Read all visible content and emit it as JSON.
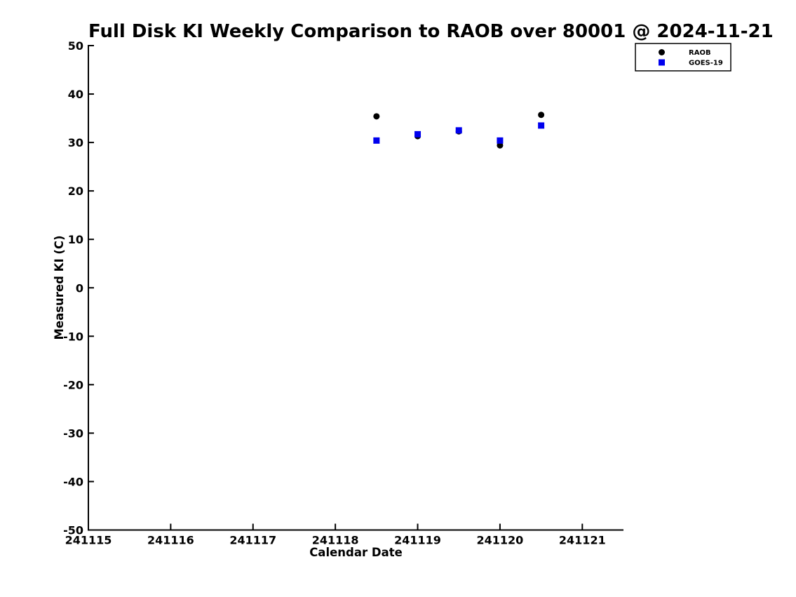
{
  "figure": {
    "background_color": "#ffffff",
    "axis_color": "#000000"
  },
  "chart_data": {
    "type": "scatter",
    "title": "Full Disk KI Weekly Comparison to RAOB over 80001 @ 2024-11-21",
    "xlabel": "Calendar Date",
    "ylabel": "Measured KI (C)",
    "xlim": [
      241115,
      241121.5
    ],
    "ylim": [
      -50,
      50
    ],
    "xtick_values": [
      241115,
      241116,
      241117,
      241118,
      241119,
      241120,
      241121
    ],
    "xtick_labels": [
      "241115",
      "241116",
      "241117",
      "241118",
      "241119",
      "241120",
      "241121"
    ],
    "ytick_values": [
      -50,
      -40,
      -30,
      -20,
      -10,
      0,
      10,
      20,
      30,
      40,
      50
    ],
    "ytick_labels": [
      "-50",
      "-40",
      "-30",
      "-20",
      "-10",
      "0",
      "10",
      "20",
      "30",
      "40",
      "50"
    ],
    "grid": false,
    "legend_position": "top-right",
    "series": [
      {
        "name": "RAOB",
        "marker": "circle",
        "color": "#000000",
        "x": [
          241118.5,
          241119.0,
          241119.5,
          241120.0,
          241120.5
        ],
        "y": [
          35.4,
          31.3,
          32.3,
          29.4,
          35.7
        ]
      },
      {
        "name": "GOES-19",
        "marker": "square",
        "color": "#0000ee",
        "x": [
          241118.5,
          241119.0,
          241119.5,
          241120.0,
          241120.5
        ],
        "y": [
          30.4,
          31.7,
          32.5,
          30.4,
          33.5
        ]
      }
    ]
  }
}
